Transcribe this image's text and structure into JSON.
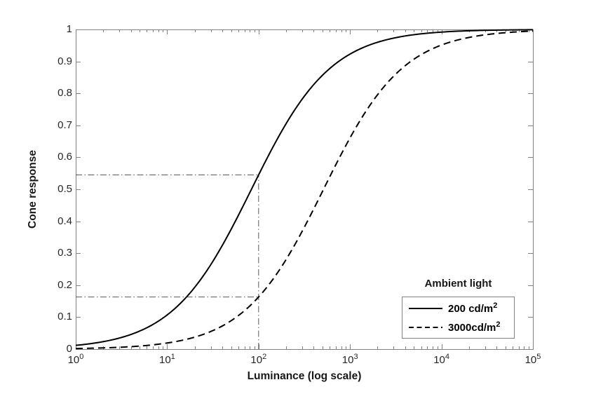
{
  "figure": {
    "background": "#ffffff"
  },
  "chart_data": {
    "type": "line",
    "title": "",
    "xlabel": "Luminance (log scale)",
    "ylabel": "Cone response",
    "x_scale": "log",
    "xlim": [
      1,
      100000
    ],
    "ylim": [
      0,
      1
    ],
    "grid": false,
    "x_tick_values": [
      1,
      10,
      100,
      1000,
      10000,
      100000
    ],
    "x_tick_labels": [
      {
        "base": "10",
        "exp": "0"
      },
      {
        "base": "10",
        "exp": "1"
      },
      {
        "base": "10",
        "exp": "2"
      },
      {
        "base": "10",
        "exp": "3"
      },
      {
        "base": "10",
        "exp": "4"
      },
      {
        "base": "10",
        "exp": "5"
      }
    ],
    "y_tick_values": [
      0,
      0.1,
      0.2,
      0.3,
      0.4,
      0.5,
      0.6,
      0.7,
      0.8,
      0.9,
      1
    ],
    "y_tick_labels": [
      "0",
      "0.1",
      "0.2",
      "0.3",
      "0.4",
      "0.5",
      "0.6",
      "0.7",
      "0.8",
      "0.9",
      "1"
    ],
    "legend": {
      "title": "Ambient light",
      "position": "lower right",
      "entries": [
        {
          "label": "200 cd/m",
          "label_sup": "2",
          "line_style": "solid"
        },
        {
          "label": "3000cd/m",
          "label_sup": "2",
          "line_style": "dashed"
        }
      ]
    },
    "series": [
      {
        "name": "200 cd/m^2",
        "style": "solid",
        "color": "#000000",
        "model": {
          "type": "naka_rushton",
          "exponent": 1,
          "semisaturation": 83.5
        },
        "points": {
          "x": [
            1,
            3.16,
            10,
            31.6,
            100,
            316,
            1000,
            3162,
            10000,
            31623,
            100000
          ],
          "y": [
            0.012,
            0.036,
            0.107,
            0.275,
            0.545,
            0.791,
            0.923,
            0.974,
            0.992,
            0.997,
            0.999
          ]
        }
      },
      {
        "name": "3000cd/m^2",
        "style": "dashed",
        "color": "#000000",
        "model": {
          "type": "naka_rushton",
          "exponent": 1,
          "semisaturation": 513
        },
        "points": {
          "x": [
            1,
            3.16,
            10,
            31.6,
            100,
            316,
            1000,
            3162,
            10000,
            31623,
            100000
          ],
          "y": [
            0.002,
            0.006,
            0.019,
            0.058,
            0.163,
            0.381,
            0.661,
            0.86,
            0.951,
            0.984,
            0.995
          ]
        }
      }
    ],
    "reference_lines": [
      {
        "orientation": "horizontal",
        "y": 0.545,
        "x_from": 1,
        "x_to": 100,
        "style": "dash-dot"
      },
      {
        "orientation": "horizontal",
        "y": 0.163,
        "x_from": 1,
        "x_to": 100,
        "style": "dash-dot"
      },
      {
        "orientation": "vertical",
        "x": 100,
        "y_from": 0,
        "y_to": 0.545,
        "style": "dash-dot"
      }
    ],
    "colors": {
      "curve": "#000000",
      "axis": "#808080",
      "tick_text": "#262626",
      "reference_line": "#595959",
      "legend_border": "#808080"
    }
  }
}
